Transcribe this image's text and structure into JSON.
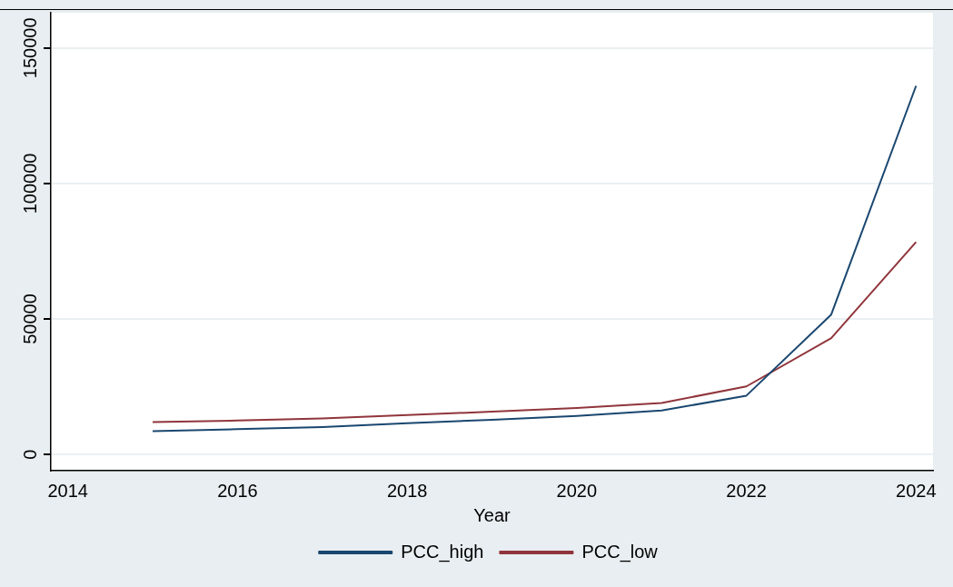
{
  "chart_data": {
    "type": "line",
    "xlabel": "Year",
    "x": [
      2015,
      2016,
      2017,
      2018,
      2019,
      2020,
      2021,
      2022,
      2023,
      2024
    ],
    "series": [
      {
        "name": "PCC_high",
        "color": "#1a476f",
        "values": [
          8600,
          9300,
          10100,
          11500,
          12800,
          14200,
          16200,
          21700,
          51600,
          136000
        ]
      },
      {
        "name": "PCC_low",
        "color": "#90353b",
        "values": [
          11900,
          12500,
          13300,
          14500,
          15800,
          17100,
          19000,
          25100,
          42900,
          78400
        ]
      }
    ],
    "xlim": [
      2013.8,
      2024.2
    ],
    "xticks": [
      2014,
      2016,
      2018,
      2020,
      2022,
      2024
    ],
    "ylim": [
      -6000,
      163000
    ],
    "yticks": [
      0,
      50000,
      100000,
      150000
    ],
    "grid": "y",
    "legend": "bottom",
    "marker": "none",
    "line_style": "solid"
  }
}
